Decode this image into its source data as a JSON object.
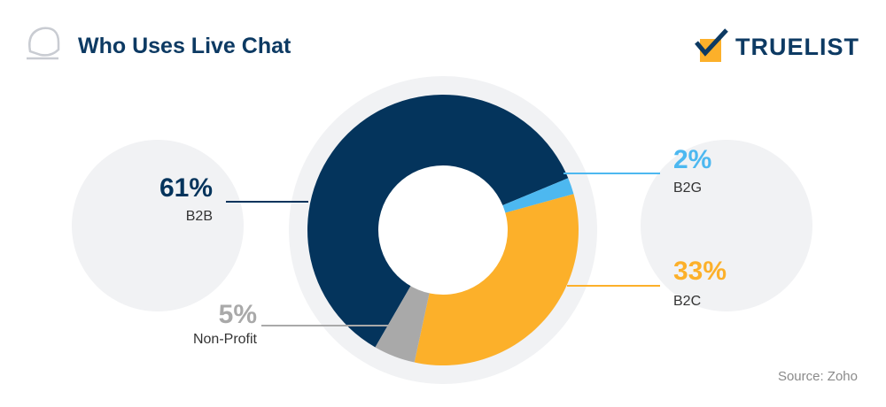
{
  "chart_data": {
    "type": "donut",
    "title": "Who Uses Live Chat",
    "brand": "TRUELIST",
    "source": "Source: Zoho",
    "categories": [
      "B2B",
      "B2G",
      "B2C",
      "Non-Profit"
    ],
    "values": [
      61,
      2,
      33,
      5
    ],
    "value_labels": [
      "61%",
      "2%",
      "33%",
      "5%"
    ],
    "colors": [
      "#04345c",
      "#4db8f0",
      "#fcb02a",
      "#a9a9a9"
    ]
  }
}
